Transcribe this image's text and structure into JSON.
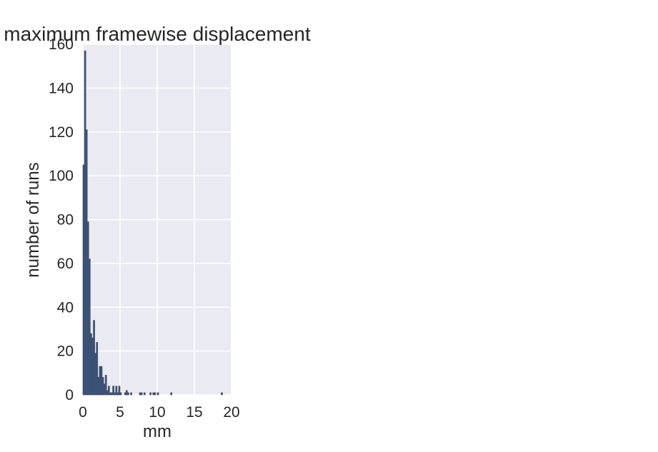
{
  "chart_data": {
    "type": "bar",
    "title": "maximum framewise displacement",
    "xlabel": "mm",
    "ylabel": "number of runs",
    "xlim": [
      0,
      20
    ],
    "ylim": [
      0,
      160
    ],
    "xticks": [
      "0",
      "5",
      "10",
      "15",
      "20"
    ],
    "yticks": [
      "0",
      "20",
      "40",
      "60",
      "80",
      "100",
      "120",
      "140",
      "160"
    ],
    "grid": true,
    "background": "#eaeaf2",
    "bar_color": "#34558c",
    "bin_width": 0.2,
    "bins": [
      {
        "x": 0.0,
        "count": 105
      },
      {
        "x": 0.2,
        "count": 157
      },
      {
        "x": 0.4,
        "count": 121
      },
      {
        "x": 0.6,
        "count": 79
      },
      {
        "x": 0.8,
        "count": 62
      },
      {
        "x": 1.0,
        "count": 28
      },
      {
        "x": 1.2,
        "count": 26
      },
      {
        "x": 1.4,
        "count": 34
      },
      {
        "x": 1.6,
        "count": 19
      },
      {
        "x": 1.8,
        "count": 24
      },
      {
        "x": 2.0,
        "count": 8
      },
      {
        "x": 2.2,
        "count": 13
      },
      {
        "x": 2.4,
        "count": 13
      },
      {
        "x": 2.6,
        "count": 8
      },
      {
        "x": 2.8,
        "count": 5
      },
      {
        "x": 3.0,
        "count": 9
      },
      {
        "x": 3.2,
        "count": 2
      },
      {
        "x": 3.4,
        "count": 4
      },
      {
        "x": 3.6,
        "count": 1
      },
      {
        "x": 3.8,
        "count": 1
      },
      {
        "x": 4.0,
        "count": 4
      },
      {
        "x": 4.2,
        "count": 1
      },
      {
        "x": 4.4,
        "count": 4
      },
      {
        "x": 4.6,
        "count": 1
      },
      {
        "x": 4.8,
        "count": 4
      },
      {
        "x": 5.0,
        "count": 1
      },
      {
        "x": 5.6,
        "count": 1
      },
      {
        "x": 5.8,
        "count": 2
      },
      {
        "x": 6.0,
        "count": 1
      },
      {
        "x": 6.4,
        "count": 1
      },
      {
        "x": 7.6,
        "count": 1
      },
      {
        "x": 7.8,
        "count": 1
      },
      {
        "x": 8.2,
        "count": 1
      },
      {
        "x": 9.0,
        "count": 1
      },
      {
        "x": 9.4,
        "count": 1
      },
      {
        "x": 9.6,
        "count": 1
      },
      {
        "x": 10.0,
        "count": 1
      },
      {
        "x": 11.8,
        "count": 1
      },
      {
        "x": 18.6,
        "count": 1
      }
    ]
  }
}
